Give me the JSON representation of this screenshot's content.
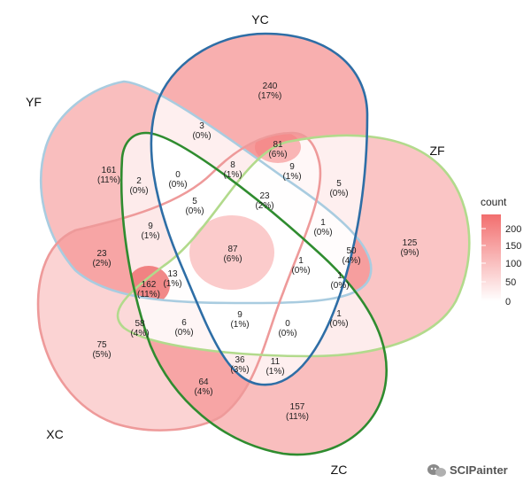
{
  "chart_data": {
    "type": "venn",
    "sets": [
      {
        "name": "YC",
        "color": "#2e6ea6"
      },
      {
        "name": "YF",
        "color": "#a9cce0"
      },
      {
        "name": "ZF",
        "color": "#b2da8c"
      },
      {
        "name": "ZC",
        "color": "#2f8c2f"
      },
      {
        "name": "XC",
        "color": "#ee9a9a"
      }
    ],
    "regions": [
      {
        "count": 240,
        "pct": "(17%)"
      },
      {
        "count": 161,
        "pct": "(11%)"
      },
      {
        "count": 125,
        "pct": "(9%)"
      },
      {
        "count": 157,
        "pct": "(11%)"
      },
      {
        "count": 75,
        "pct": "(5%)"
      },
      {
        "count": 3,
        "pct": "(0%)"
      },
      {
        "count": 81,
        "pct": "(6%)"
      },
      {
        "count": 5,
        "pct": "(0%)"
      },
      {
        "count": 2,
        "pct": "(0%)"
      },
      {
        "count": 0,
        "pct": "(0%)"
      },
      {
        "count": 8,
        "pct": "(1%)"
      },
      {
        "count": 9,
        "pct": "(1%)"
      },
      {
        "count": 23,
        "pct": "(2%)"
      },
      {
        "count": 5,
        "pct": "(0%)"
      },
      {
        "count": 1,
        "pct": "(0%)"
      },
      {
        "count": 9,
        "pct": "(1%)"
      },
      {
        "count": 87,
        "pct": "(6%)"
      },
      {
        "count": 50,
        "pct": "(4%)"
      },
      {
        "count": 23,
        "pct": "(2%)"
      },
      {
        "count": 13,
        "pct": "(1%)"
      },
      {
        "count": 1,
        "pct": "(0%)"
      },
      {
        "count": 1,
        "pct": "(0%)"
      },
      {
        "count": 162,
        "pct": "(11%)"
      },
      {
        "count": 58,
        "pct": "(4%)"
      },
      {
        "count": 6,
        "pct": "(0%)"
      },
      {
        "count": 9,
        "pct": "(1%)"
      },
      {
        "count": 0,
        "pct": "(0%)"
      },
      {
        "count": 1,
        "pct": "(0%)"
      },
      {
        "count": 64,
        "pct": "(4%)"
      },
      {
        "count": 36,
        "pct": "(3%)"
      },
      {
        "count": 11,
        "pct": "(1%)"
      }
    ],
    "legend": {
      "title": "count",
      "ticks": [
        "200",
        "150",
        "100",
        "50",
        "0"
      ],
      "color_low": "#ffffff",
      "color_high": "#f26e6e",
      "placement": "right"
    }
  },
  "watermark": {
    "text": "SCIPainter"
  }
}
